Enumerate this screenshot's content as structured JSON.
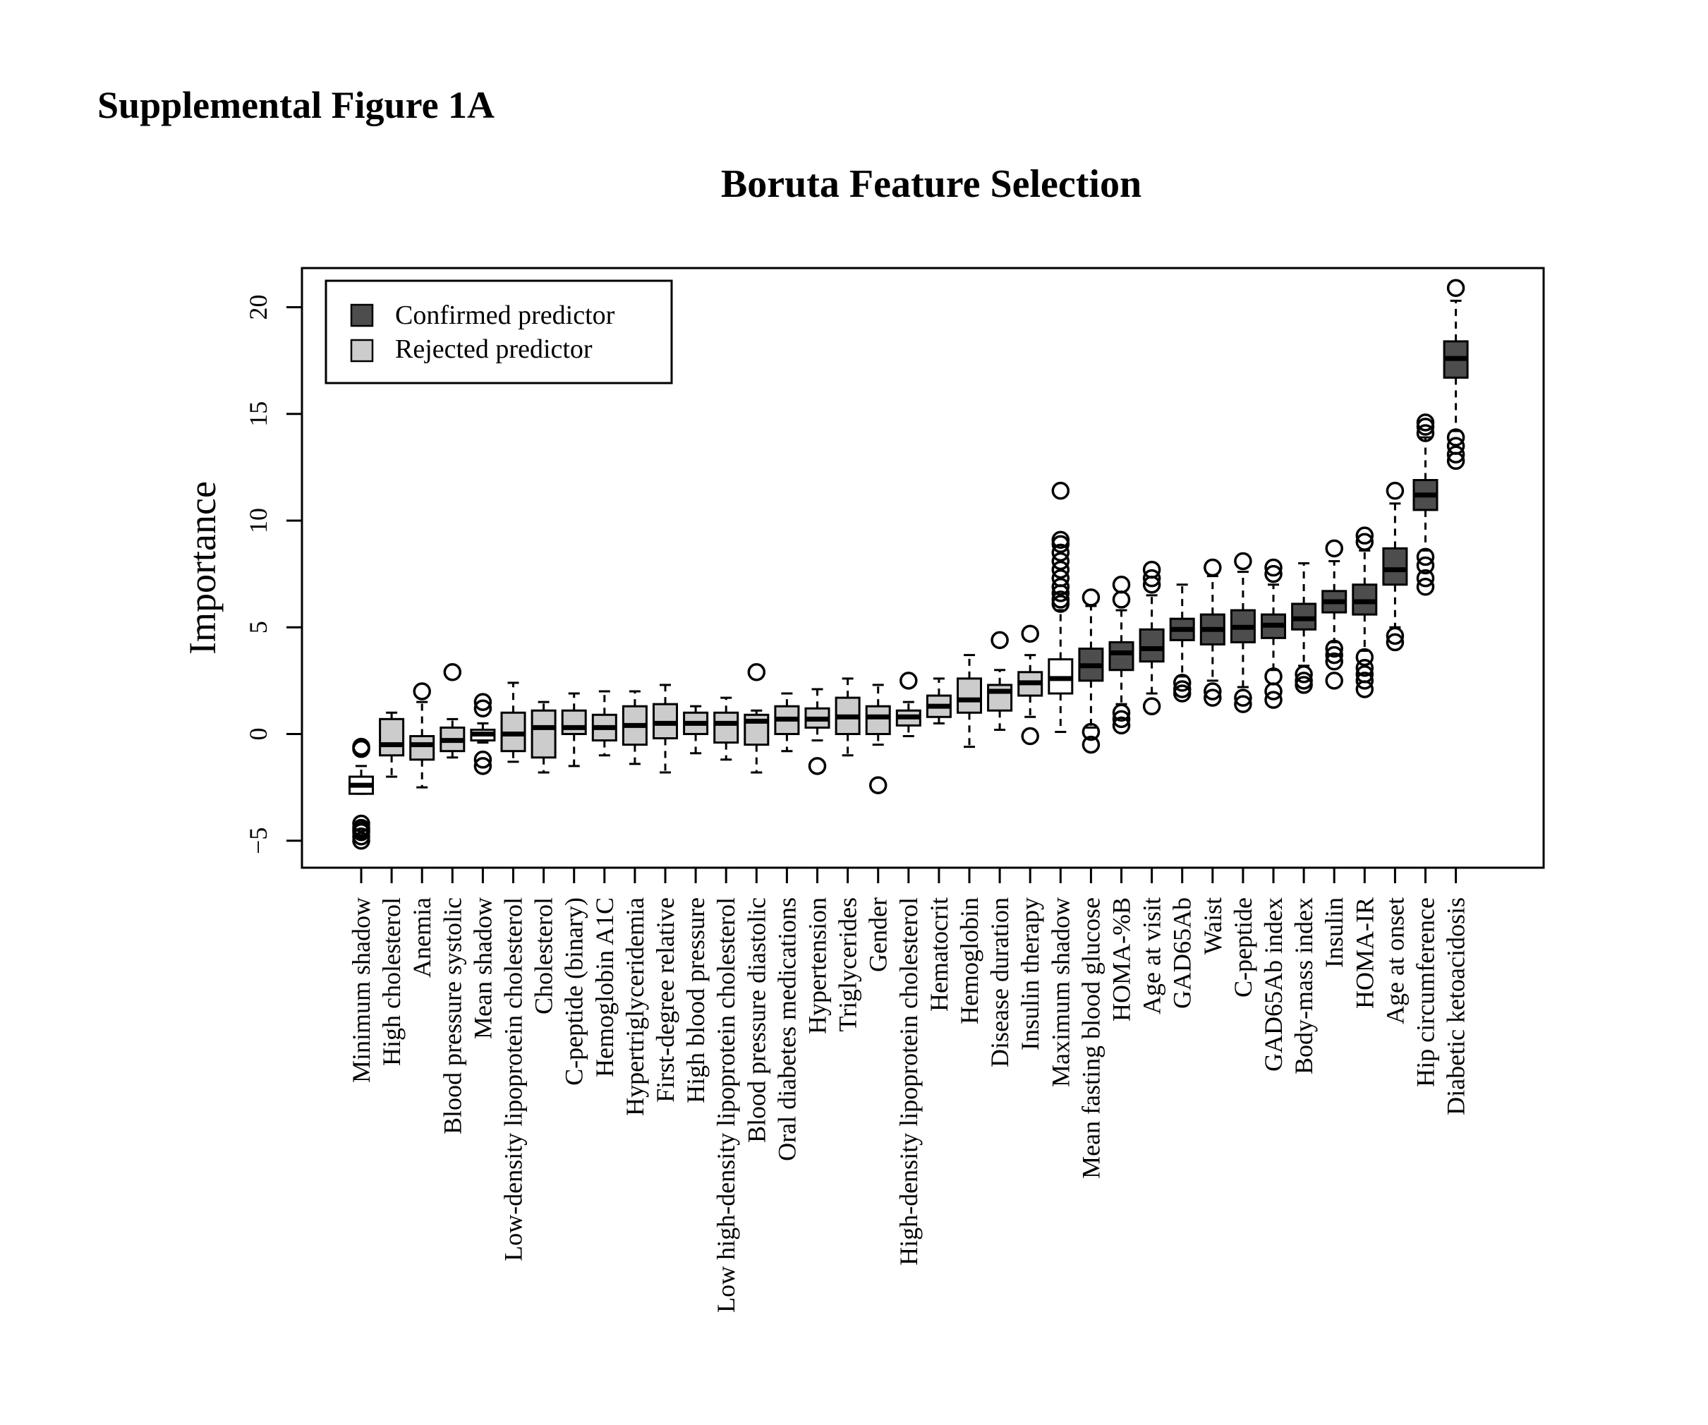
{
  "heading": "Supplemental Figure 1A",
  "chart_data": {
    "type": "boxplot",
    "title": "Boruta Feature Selection",
    "xlabel": "",
    "ylabel": "Importance",
    "ylim": [
      -6,
      22
    ],
    "yticks": [
      -5,
      0,
      5,
      10,
      15,
      20
    ],
    "ytick_labels": [
      "−5",
      "0",
      "5",
      "10",
      "15",
      "20"
    ],
    "legend": {
      "placement": "top-left",
      "entries": [
        {
          "label": "Confirmed predictor",
          "color": "#4d4d4d"
        },
        {
          "label": "Rejected predictor",
          "color": "#cccccc"
        }
      ]
    },
    "colors": {
      "confirmed": "#4d4d4d",
      "rejected": "#cccccc",
      "shadow": "#ffffff"
    },
    "features": [
      {
        "name": "Minimum shadow",
        "status": "shadow",
        "wlo": -2.8,
        "q1": -2.8,
        "median": -2.4,
        "q3": -2.0,
        "whi": -1.5,
        "outliers": [
          -0.6,
          -0.7,
          -4.2,
          -4.4,
          -4.5,
          -4.6,
          -4.8,
          -5.0
        ]
      },
      {
        "name": "High cholesterol",
        "status": "rejected",
        "wlo": -2.0,
        "q1": -1.0,
        "median": -0.5,
        "q3": 0.7,
        "whi": 1.0,
        "outliers": []
      },
      {
        "name": "Anemia",
        "status": "rejected",
        "wlo": -2.5,
        "q1": -1.2,
        "median": -0.5,
        "q3": -0.1,
        "whi": 1.5,
        "outliers": [
          2.0
        ]
      },
      {
        "name": "Blood pressure systolic",
        "status": "rejected",
        "wlo": -1.1,
        "q1": -0.8,
        "median": -0.3,
        "q3": 0.3,
        "whi": 0.7,
        "outliers": [
          2.9
        ]
      },
      {
        "name": "Mean shadow",
        "status": "shadow",
        "wlo": -0.4,
        "q1": -0.3,
        "median": 0.0,
        "q3": 0.2,
        "whi": 0.5,
        "outliers": [
          1.2,
          1.5,
          -1.2,
          -1.5
        ]
      },
      {
        "name": "Low-density lipoprotein cholesterol",
        "status": "rejected",
        "wlo": -1.3,
        "q1": -0.8,
        "median": 0.0,
        "q3": 1.0,
        "whi": 2.4,
        "outliers": []
      },
      {
        "name": "Cholesterol",
        "status": "rejected",
        "wlo": -1.8,
        "q1": -1.1,
        "median": 0.3,
        "q3": 1.1,
        "whi": 1.5,
        "outliers": []
      },
      {
        "name": "C-peptide (binary)",
        "status": "rejected",
        "wlo": -1.5,
        "q1": 0.0,
        "median": 0.3,
        "q3": 1.1,
        "whi": 1.9,
        "outliers": []
      },
      {
        "name": "Hemoglobin A1C",
        "status": "rejected",
        "wlo": -1.0,
        "q1": -0.3,
        "median": 0.3,
        "q3": 0.9,
        "whi": 2.0,
        "outliers": []
      },
      {
        "name": "Hypertriglyceridemia",
        "status": "rejected",
        "wlo": -1.4,
        "q1": -0.5,
        "median": 0.4,
        "q3": 1.3,
        "whi": 2.0,
        "outliers": []
      },
      {
        "name": "First-degree relative",
        "status": "rejected",
        "wlo": -1.8,
        "q1": -0.2,
        "median": 0.5,
        "q3": 1.4,
        "whi": 2.3,
        "outliers": []
      },
      {
        "name": "High blood pressure",
        "status": "rejected",
        "wlo": -0.9,
        "q1": 0.0,
        "median": 0.5,
        "q3": 1.0,
        "whi": 1.3,
        "outliers": []
      },
      {
        "name": "Low high-density lipoprotein cholesterol",
        "status": "rejected",
        "wlo": -1.2,
        "q1": -0.4,
        "median": 0.5,
        "q3": 1.0,
        "whi": 1.7,
        "outliers": []
      },
      {
        "name": "Blood pressure diastolic",
        "status": "rejected",
        "wlo": -1.8,
        "q1": -0.5,
        "median": 0.6,
        "q3": 0.9,
        "whi": 1.1,
        "outliers": [
          2.9
        ]
      },
      {
        "name": "Oral diabetes medications",
        "status": "rejected",
        "wlo": -0.8,
        "q1": 0.0,
        "median": 0.7,
        "q3": 1.3,
        "whi": 1.9,
        "outliers": []
      },
      {
        "name": "Hypertension",
        "status": "rejected",
        "wlo": -0.3,
        "q1": 0.3,
        "median": 0.7,
        "q3": 1.2,
        "whi": 2.1,
        "outliers": [
          -1.5
        ]
      },
      {
        "name": "Triglycerides",
        "status": "rejected",
        "wlo": -1.0,
        "q1": 0.0,
        "median": 0.8,
        "q3": 1.7,
        "whi": 2.6,
        "outliers": []
      },
      {
        "name": "Gender",
        "status": "rejected",
        "wlo": -0.5,
        "q1": 0.0,
        "median": 0.8,
        "q3": 1.3,
        "whi": 2.3,
        "outliers": [
          -2.4
        ]
      },
      {
        "name": "High-density lipoprotein cholesterol",
        "status": "rejected",
        "wlo": -0.1,
        "q1": 0.4,
        "median": 0.8,
        "q3": 1.1,
        "whi": 1.5,
        "outliers": [
          2.5
        ]
      },
      {
        "name": "Hematocrit",
        "status": "rejected",
        "wlo": 0.5,
        "q1": 0.8,
        "median": 1.3,
        "q3": 1.8,
        "whi": 2.6,
        "outliers": []
      },
      {
        "name": "Hemoglobin",
        "status": "rejected",
        "wlo": -0.6,
        "q1": 1.0,
        "median": 1.6,
        "q3": 2.6,
        "whi": 3.7,
        "outliers": []
      },
      {
        "name": "Disease duration",
        "status": "rejected",
        "wlo": 0.2,
        "q1": 1.1,
        "median": 2.0,
        "q3": 2.3,
        "whi": 3.0,
        "outliers": [
          4.4
        ]
      },
      {
        "name": "Insulin therapy",
        "status": "rejected",
        "wlo": 0.8,
        "q1": 1.8,
        "median": 2.4,
        "q3": 2.9,
        "whi": 3.7,
        "outliers": [
          4.7,
          -0.1
        ]
      },
      {
        "name": "Maximum shadow",
        "status": "shadow",
        "wlo": 0.1,
        "q1": 1.9,
        "median": 2.6,
        "q3": 3.5,
        "whi": 5.8,
        "outliers": [
          6.1,
          6.3,
          6.6,
          6.9,
          7.3,
          7.7,
          8.1,
          8.5,
          8.9,
          9.1,
          11.4
        ]
      },
      {
        "name": "Mean fasting blood glucose",
        "status": "confirmed",
        "wlo": 0.3,
        "q1": 2.5,
        "median": 3.2,
        "q3": 4.0,
        "whi": 6.0,
        "outliers": [
          6.4,
          0.1,
          -0.5
        ]
      },
      {
        "name": "HOMA-%B",
        "status": "confirmed",
        "wlo": 1.4,
        "q1": 3.0,
        "median": 3.8,
        "q3": 4.3,
        "whi": 5.8,
        "outliers": [
          6.3,
          7.0,
          1.0,
          0.7,
          0.4
        ]
      },
      {
        "name": "Age at visit",
        "status": "confirmed",
        "wlo": 1.9,
        "q1": 3.4,
        "median": 4.0,
        "q3": 4.9,
        "whi": 6.5,
        "outliers": [
          7.0,
          7.3,
          7.7,
          1.3
        ]
      },
      {
        "name": "GAD65Ab",
        "status": "confirmed",
        "wlo": 2.7,
        "q1": 4.4,
        "median": 4.9,
        "q3": 5.4,
        "whi": 7.0,
        "outliers": [
          2.4,
          2.1,
          1.9
        ]
      },
      {
        "name": "Waist",
        "status": "confirmed",
        "wlo": 2.5,
        "q1": 4.2,
        "median": 4.9,
        "q3": 5.6,
        "whi": 7.4,
        "outliers": [
          7.8,
          2.0,
          1.7
        ]
      },
      {
        "name": "C-peptide",
        "status": "confirmed",
        "wlo": 2.2,
        "q1": 4.3,
        "median": 5.0,
        "q3": 5.8,
        "whi": 7.6,
        "outliers": [
          8.1,
          1.7,
          1.4
        ]
      },
      {
        "name": "GAD65Ab index",
        "status": "confirmed",
        "wlo": 3.0,
        "q1": 4.5,
        "median": 5.1,
        "q3": 5.6,
        "whi": 7.0,
        "outliers": [
          7.5,
          7.8,
          2.7,
          2.0,
          1.6
        ]
      },
      {
        "name": "Body-mass index",
        "status": "confirmed",
        "wlo": 3.2,
        "q1": 4.9,
        "median": 5.4,
        "q3": 6.1,
        "whi": 8.0,
        "outliers": [
          2.8,
          2.5,
          2.3
        ]
      },
      {
        "name": "Insulin",
        "status": "confirmed",
        "wlo": 4.3,
        "q1": 5.7,
        "median": 6.2,
        "q3": 6.7,
        "whi": 8.1,
        "outliers": [
          8.7,
          4.0,
          3.7,
          3.4,
          2.5
        ]
      },
      {
        "name": "HOMA-IR",
        "status": "confirmed",
        "wlo": 3.9,
        "q1": 5.6,
        "median": 6.2,
        "q3": 7.0,
        "whi": 8.6,
        "outliers": [
          9.0,
          9.3,
          3.6,
          3.1,
          2.8,
          2.5,
          2.1
        ]
      },
      {
        "name": "Age at onset",
        "status": "confirmed",
        "wlo": 5.0,
        "q1": 7.0,
        "median": 7.7,
        "q3": 8.7,
        "whi": 10.8,
        "outliers": [
          11.4,
          4.6,
          4.3
        ]
      },
      {
        "name": "Hip circumference",
        "status": "confirmed",
        "wlo": 8.6,
        "q1": 10.5,
        "median": 11.2,
        "q3": 11.9,
        "whi": 13.9,
        "outliers": [
          14.1,
          14.4,
          14.6,
          8.3,
          7.9,
          7.3,
          6.9
        ]
      },
      {
        "name": "Diabetic ketoacidosis",
        "status": "confirmed",
        "wlo": 14.2,
        "q1": 16.7,
        "median": 17.6,
        "q3": 18.4,
        "whi": 20.3,
        "outliers": [
          20.9,
          13.9,
          13.5,
          13.1,
          12.8
        ]
      }
    ]
  }
}
